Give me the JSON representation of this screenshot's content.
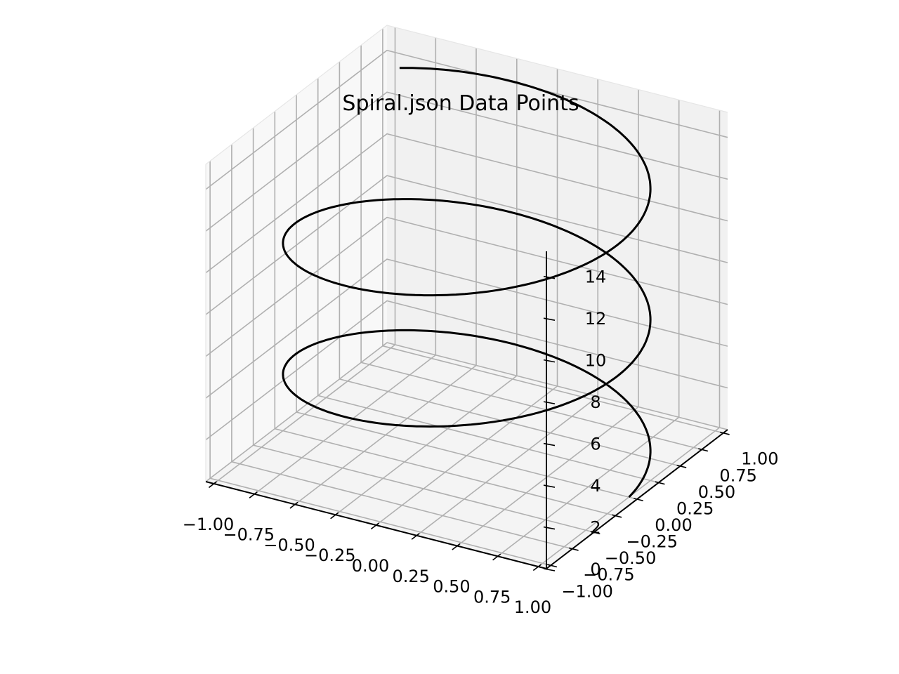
{
  "chart_data": {
    "type": "line",
    "projection": "3d",
    "title": "Spiral.json Data Points",
    "xlabel": "",
    "ylabel": "",
    "zlabel": "",
    "xlim": [
      -1.05,
      1.05
    ],
    "ylim": [
      -1.05,
      1.05
    ],
    "zlim": [
      0,
      15.2
    ],
    "grid": true,
    "x_ticks": [
      "−1.00",
      "−0.75",
      "−0.50",
      "−0.25",
      "0.00",
      "0.25",
      "0.50",
      "0.75",
      "1.00"
    ],
    "y_ticks": [
      "−1.00",
      "−0.75",
      "−0.50",
      "−0.25",
      "0.00",
      "0.25",
      "0.50",
      "0.75",
      "1.00"
    ],
    "z_ticks": [
      "0",
      "2",
      "4",
      "6",
      "8",
      "10",
      "12",
      "14"
    ],
    "series": [
      {
        "line_color": "#000000",
        "parametric": {
          "t_range": [
            0,
            15
          ],
          "x": "cos(t)",
          "y": "sin(t)",
          "z": "t"
        }
      }
    ]
  }
}
